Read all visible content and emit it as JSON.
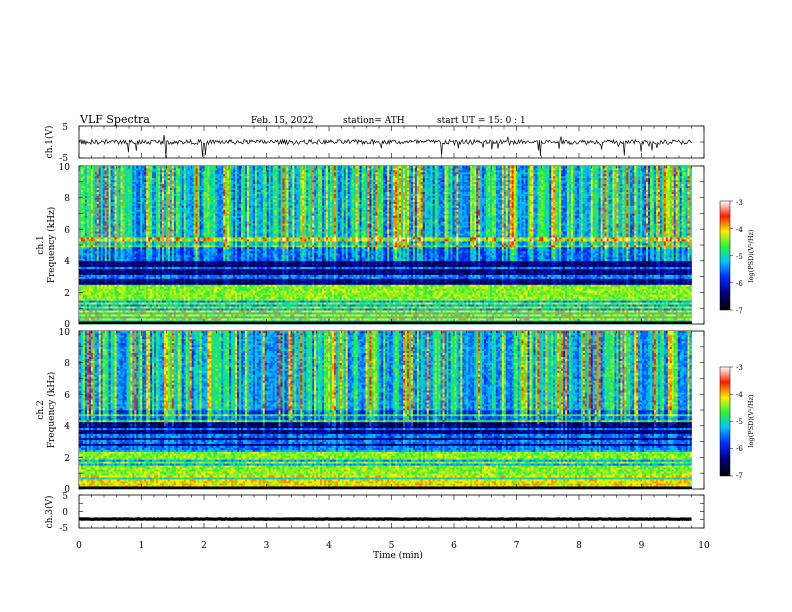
{
  "header": {
    "title": "VLF  Spectra",
    "date": "Feb. 15, 2022",
    "station": "station= ATH",
    "start": "start  UT  =   15: 0   : 1"
  },
  "chart_data": [
    {
      "type": "line",
      "panel": "ch1-waveform",
      "ylabel": "ch.1(V)",
      "ylim": [
        -5,
        5
      ],
      "yticks": [
        "5",
        "-5"
      ],
      "xlim": [
        0,
        10
      ],
      "x_extent": [
        0,
        9.8
      ],
      "baseline": 0,
      "noise_amplitude": 1.5,
      "color": "#000000"
    },
    {
      "type": "heatmap",
      "panel": "ch1-spectrogram",
      "ylabel": "ch.1\nFrequency  (kHz)",
      "ylim": [
        0,
        10
      ],
      "yticks": [
        "0",
        "2",
        "4",
        "6",
        "8",
        "10"
      ],
      "xlim": [
        0,
        10
      ],
      "x_extent": [
        0,
        9.8
      ],
      "description": "broadband sferics above 5 kHz, quieter band 2.5-4.2 kHz, strong lines below 2 kHz",
      "colorbar": {
        "label": "log(PSD)(V²/Hz)",
        "range": [
          -7,
          -3
        ],
        "ticks": [
          "-3",
          "-4",
          "-5",
          "-6",
          "-7"
        ]
      }
    },
    {
      "type": "heatmap",
      "panel": "ch2-spectrogram",
      "ylabel": "ch.2\nFrequency  (kHz)",
      "ylim": [
        0,
        10
      ],
      "yticks": [
        "0",
        "2",
        "4",
        "6",
        "8",
        "10"
      ],
      "xlim": [
        0,
        10
      ],
      "x_extent": [
        0,
        9.8
      ],
      "description": "broadband sferics above 5 kHz, quieter band 2.5-4.5 kHz, strong bands below 2 kHz",
      "colorbar": {
        "label": "log(PSD)(V²/Hz)",
        "range": [
          -7,
          -3
        ],
        "ticks": [
          "-3",
          "-4",
          "-5",
          "-6",
          "-7"
        ]
      }
    },
    {
      "type": "line",
      "panel": "ch3-waveform",
      "ylabel": "ch.3(V)",
      "ylim": [
        -5,
        5
      ],
      "yticks": [
        "5",
        "0",
        "-5"
      ],
      "xlim": [
        0,
        10
      ],
      "x_extent": [
        0,
        9.8
      ],
      "baseline": -2.3,
      "noise_amplitude": 0.15,
      "color": "#000000"
    }
  ],
  "xaxis": {
    "label": "Time  (min)",
    "ticks": [
      "0",
      "1",
      "2",
      "3",
      "4",
      "5",
      "6",
      "7",
      "8",
      "9",
      "10"
    ]
  }
}
